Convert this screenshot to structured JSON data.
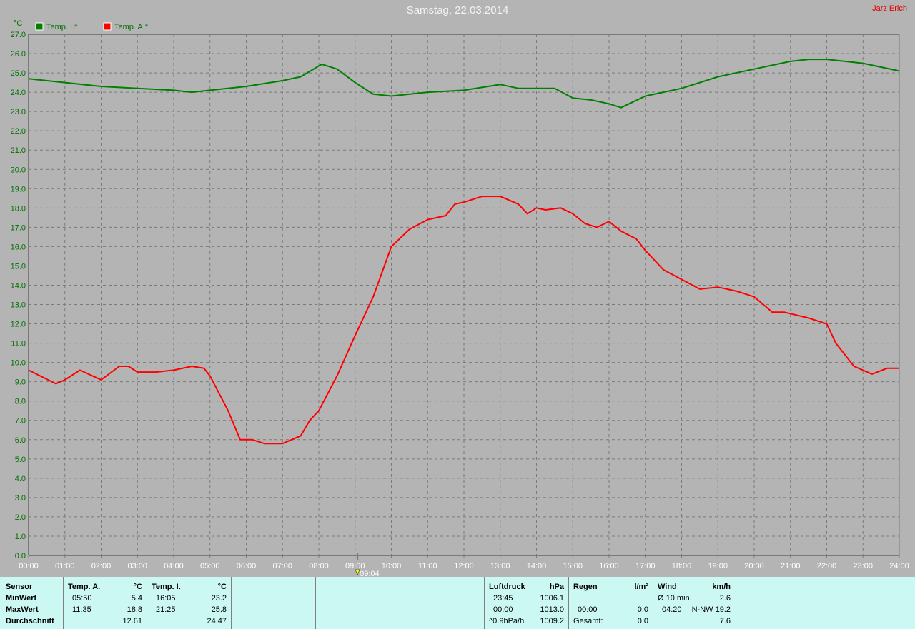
{
  "header": {
    "title": "Samstag, 22.03.2014",
    "author": "Jarz Erich"
  },
  "chart_data": {
    "type": "line",
    "ylabel": "°C",
    "ylim": [
      0,
      27
    ],
    "yticks": [
      "0.0",
      "1.0",
      "2.0",
      "3.0",
      "4.0",
      "5.0",
      "6.0",
      "7.0",
      "8.0",
      "9.0",
      "10.0",
      "11.0",
      "12.0",
      "13.0",
      "14.0",
      "15.0",
      "16.0",
      "17.0",
      "18.0",
      "19.0",
      "20.0",
      "21.0",
      "22.0",
      "23.0",
      "24.0",
      "25.0",
      "26.0",
      "27.0"
    ],
    "xticks": [
      "00:00",
      "01:00",
      "02:00",
      "03:00",
      "04:00",
      "05:00",
      "06:00",
      "07:00",
      "08:00",
      "09:00",
      "10:00",
      "11:00",
      "12:00",
      "13:00",
      "14:00",
      "15:00",
      "16:00",
      "17:00",
      "18:00",
      "19:00",
      "20:00",
      "21:00",
      "22:00",
      "23:00",
      "24:00"
    ],
    "xlim_hours": [
      0,
      24
    ],
    "grid": true,
    "legend_placement": "top-left",
    "marker": {
      "time": "09:04",
      "label": "09:04",
      "color": "#ffff00"
    },
    "series": [
      {
        "name": "Temp. I.*",
        "color": "#008000",
        "x": [
          "00:00",
          "01:00",
          "02:00",
          "03:00",
          "04:00",
          "04:30",
          "05:00",
          "06:00",
          "07:00",
          "07:30",
          "08:05",
          "08:30",
          "09:00",
          "09:30",
          "10:00",
          "11:00",
          "12:00",
          "13:00",
          "13:30",
          "14:00",
          "14:30",
          "15:00",
          "15:30",
          "16:00",
          "16:20",
          "17:00",
          "18:00",
          "19:00",
          "20:00",
          "21:00",
          "21:30",
          "22:00",
          "23:00",
          "24:00"
        ],
        "values": [
          24.7,
          24.5,
          24.3,
          24.2,
          24.1,
          24.0,
          24.1,
          24.3,
          24.6,
          24.8,
          25.45,
          25.2,
          24.5,
          23.9,
          23.8,
          24.0,
          24.1,
          24.4,
          24.2,
          24.2,
          24.2,
          23.7,
          23.6,
          23.4,
          23.2,
          23.8,
          24.2,
          24.8,
          25.2,
          25.6,
          25.7,
          25.7,
          25.5,
          25.1
        ]
      },
      {
        "name": "Temp. A.*",
        "color": "#ff0000",
        "x": [
          "00:00",
          "00:45",
          "01:00",
          "01:25",
          "02:00",
          "02:30",
          "02:45",
          "03:00",
          "03:30",
          "04:00",
          "04:30",
          "04:50",
          "05:00",
          "05:30",
          "05:50",
          "06:10",
          "06:30",
          "07:00",
          "07:30",
          "07:45",
          "08:00",
          "08:30",
          "09:00",
          "09:30",
          "10:00",
          "10:30",
          "11:00",
          "11:30",
          "11:45",
          "12:00",
          "12:30",
          "13:00",
          "13:30",
          "13:45",
          "14:00",
          "14:15",
          "14:40",
          "15:00",
          "15:20",
          "15:40",
          "16:00",
          "16:20",
          "16:45",
          "17:00",
          "17:30",
          "18:00",
          "18:30",
          "19:00",
          "19:30",
          "20:00",
          "20:30",
          "20:50",
          "21:30",
          "22:00",
          "22:15",
          "22:45",
          "23:15",
          "23:40",
          "24:00"
        ],
        "values": [
          9.6,
          8.9,
          9.1,
          9.6,
          9.1,
          9.8,
          9.8,
          9.5,
          9.5,
          9.6,
          9.8,
          9.7,
          9.3,
          7.5,
          6.0,
          6.0,
          5.8,
          5.8,
          6.2,
          7.0,
          7.5,
          9.3,
          11.4,
          13.4,
          16.0,
          16.9,
          17.4,
          17.6,
          18.2,
          18.3,
          18.6,
          18.6,
          18.2,
          17.7,
          18.0,
          17.9,
          18.0,
          17.7,
          17.2,
          17.0,
          17.3,
          16.8,
          16.4,
          15.8,
          14.8,
          14.3,
          13.8,
          13.9,
          13.7,
          13.4,
          12.6,
          12.6,
          12.3,
          12.0,
          11.0,
          9.8,
          9.4,
          9.7,
          9.7
        ]
      }
    ]
  },
  "table": {
    "sensor": {
      "h": "Sensor",
      "r1": "MinWert",
      "r2": "MaxWert",
      "r3": "Durchschnitt"
    },
    "temp_a": {
      "h": "Temp. A.",
      "unit": "°C",
      "min_time": "05:50",
      "min": "5.4",
      "max_time": "11:35",
      "max": "18.8",
      "avg": "12.61"
    },
    "temp_i": {
      "h": "Temp. I.",
      "unit": "°C",
      "min_time": "16:05",
      "min": "23.2",
      "max_time": "21:25",
      "max": "25.8",
      "avg": "24.47"
    },
    "luftdruck": {
      "h": "Luftdruck",
      "unit": "hPa",
      "t1": "23:45",
      "v1": "1006.1",
      "t2": "00:00",
      "v2": "1013.0",
      "t3": "^0.9hPa/h",
      "v3": "1009.2"
    },
    "regen": {
      "h": "Regen",
      "unit": "l/m²",
      "t2": "00:00",
      "v2": "0.0",
      "t3": "Gesamt:",
      "v3": "0.0"
    },
    "wind": {
      "h": "Wind",
      "unit": "km/h",
      "t1": "Ø 10 min.",
      "v1": "2.6",
      "t2": "04:20",
      "v2": "N-NW 19.2",
      "v3": "7.6"
    }
  }
}
